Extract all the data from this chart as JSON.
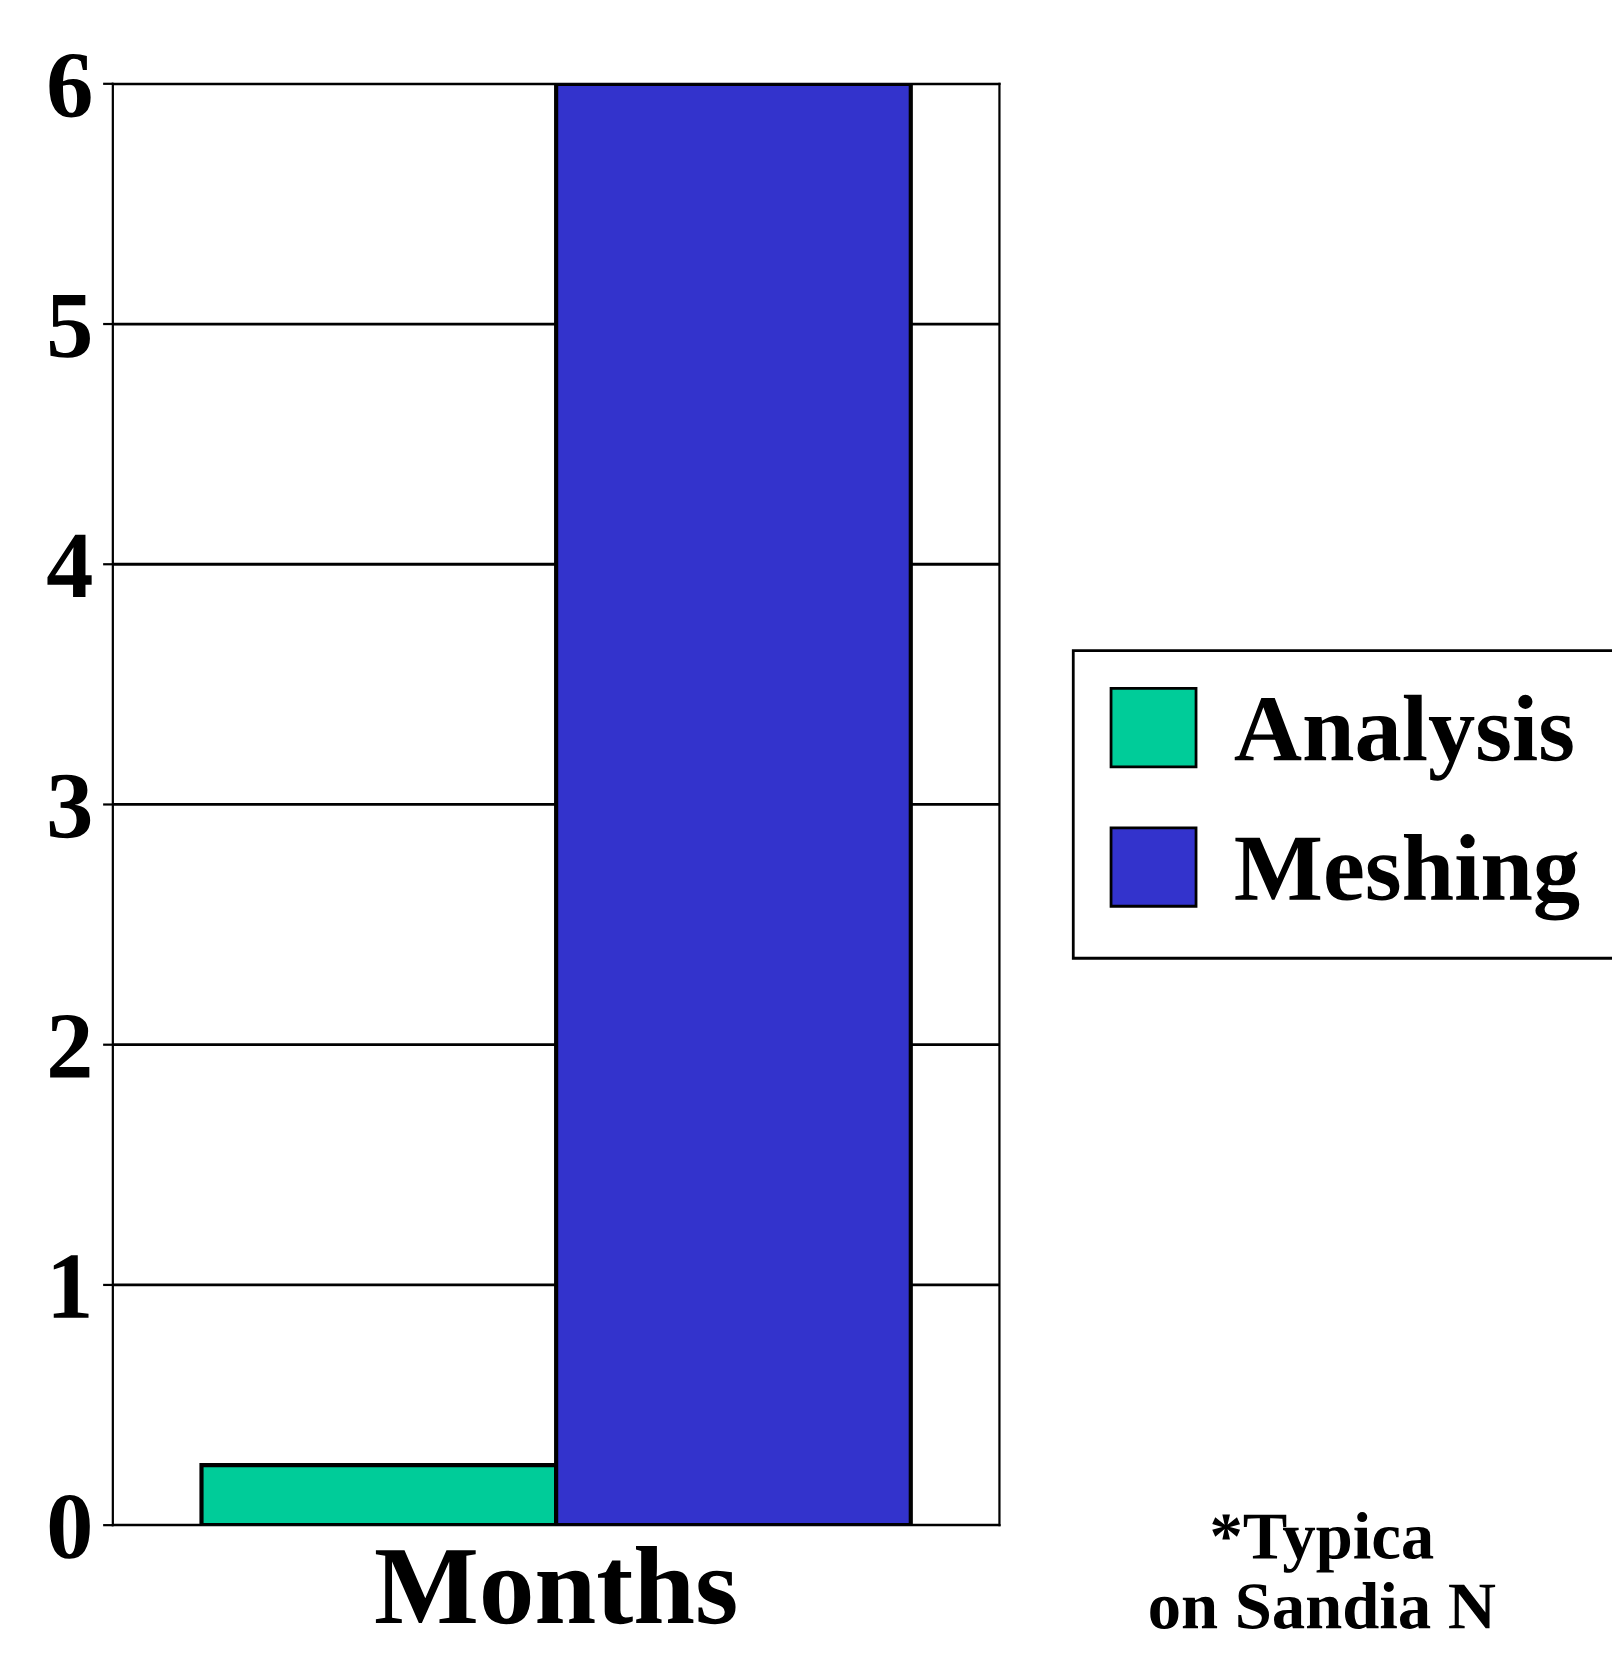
{
  "chart_data": {
    "type": "bar",
    "xlabel": "Months",
    "categories": [
      null
    ],
    "series": [
      {
        "name": "Analysis",
        "color": "#00cc99",
        "values": [
          0.25
        ]
      },
      {
        "name": "Meshing",
        "color": "#3333cc",
        "values": [
          6
        ]
      }
    ],
    "ylim": [
      0,
      6
    ],
    "yticks": [
      0,
      1,
      2,
      3,
      4,
      5,
      6
    ],
    "grid": "y",
    "legend": "right",
    "annotations": [
      "*Typica\non Sandia N"
    ]
  }
}
